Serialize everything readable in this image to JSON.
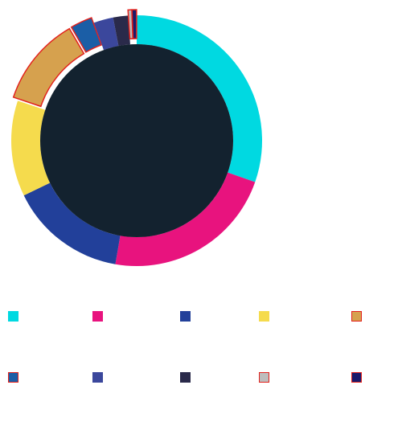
{
  "chart_data": {
    "type": "pie",
    "variant": "donut",
    "title": "",
    "legend_position": "bottom",
    "hole_color": "#13222f",
    "highlight_color": "#e2211c",
    "slices": [
      {
        "name": "",
        "value": 31.2,
        "color": "#00d9e1",
        "highlighted": false
      },
      {
        "name": "",
        "value": 23.0,
        "color": "#e8137e",
        "highlighted": false
      },
      {
        "name": "",
        "value": 15.5,
        "color": "#22409a",
        "highlighted": false
      },
      {
        "name": "",
        "value": 12.7,
        "color": "#f5db4d",
        "highlighted": false
      },
      {
        "name": "",
        "value": 11.8,
        "color": "#d6a14e",
        "highlighted": true
      },
      {
        "name": "",
        "value": 2.9,
        "color": "#1b5ea6",
        "highlighted": true
      },
      {
        "name": "",
        "value": 2.6,
        "color": "#3b479c",
        "highlighted": false
      },
      {
        "name": "",
        "value": 2.0,
        "color": "#2a2a4a",
        "highlighted": false
      },
      {
        "name": "",
        "value": 0.5,
        "color": "#bdbdbd",
        "highlighted": true
      },
      {
        "name": "",
        "value": 0.6,
        "color": "#1a1a6b",
        "highlighted": true
      }
    ]
  }
}
